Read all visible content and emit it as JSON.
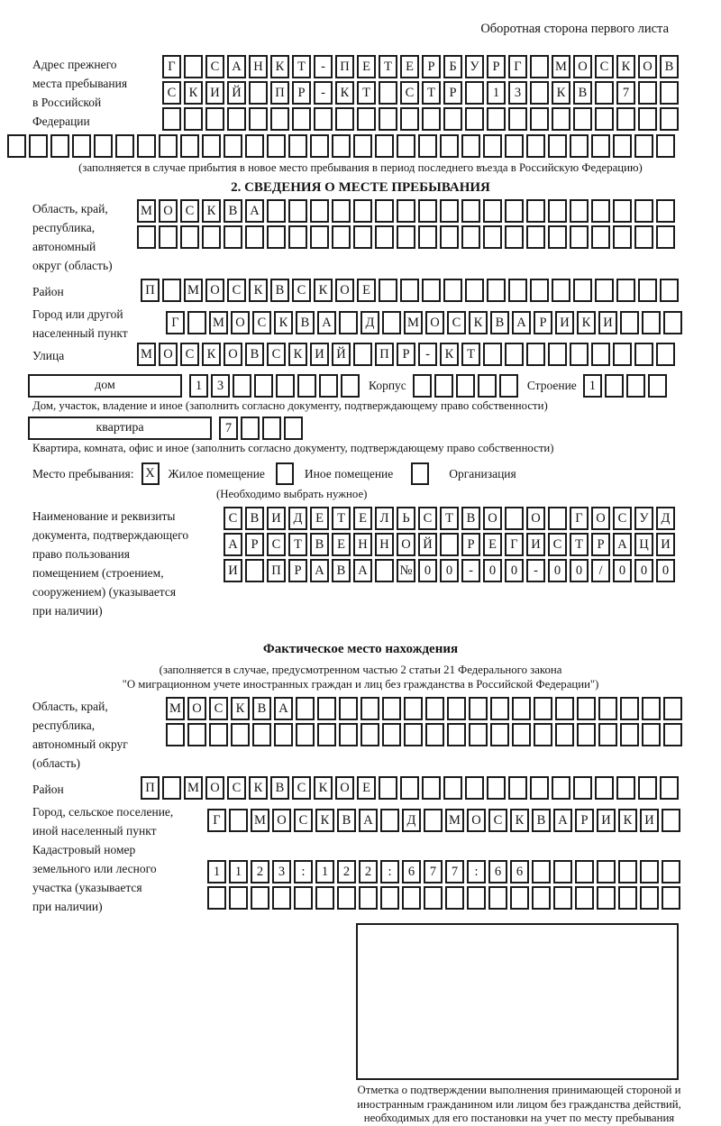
{
  "page": {
    "top_note": "Оборотная сторона первого листа"
  },
  "prev_address": {
    "label": "Адрес прежнего\nместа пребывания\nв Российской\nФедерации",
    "rows": [
      {
        "count": 24,
        "text": "Г САНКТ-ПЕТЕРБУРГ МОСКОВ"
      },
      {
        "count": 24,
        "text": "СКИЙ ПР-КТ СТР 13 КВ 7"
      },
      {
        "count": 24,
        "text": ""
      },
      {
        "count": 31,
        "text": ""
      }
    ],
    "note": "(заполняется в случае прибытия в новое место пребывания в период последнего въезда в Российскую Федерацию)"
  },
  "section2": {
    "title": "2. СВЕДЕНИЯ О МЕСТЕ ПРЕБЫВАНИЯ",
    "region": {
      "label": "Область, край,\nреспублика,\nавтономный\nокруг (область)",
      "rows": [
        {
          "count": 25,
          "text": "МОСКВА"
        },
        {
          "count": 25,
          "text": ""
        }
      ]
    },
    "district": {
      "label": "Район",
      "row": {
        "count": 25,
        "text": "П МОСКВСКОЕ"
      }
    },
    "city": {
      "label": "Город или другой\nнаселенный пункт",
      "row": {
        "count": 24,
        "text": "Г МОСКВА Д МОСКВАРИКИ"
      }
    },
    "street": {
      "label": "Улица",
      "row": {
        "count": 25,
        "text": "МОСКОВСКИЙ ПР-КТ"
      }
    },
    "house": {
      "box_label": "дом",
      "cells": {
        "count": 8,
        "text": "13"
      },
      "korpus_label": "Корпус",
      "korpus_cells": {
        "count": 5,
        "text": ""
      },
      "stroenie_label": "Строение",
      "stroenie_cells": {
        "count": 4,
        "text": "1"
      },
      "caption": "Дом, участок, владение и иное (заполнить согласно документу, подтверждающему право собственности)"
    },
    "apartment": {
      "box_label": "квартира",
      "cells": {
        "count": 4,
        "text": "7"
      },
      "caption": "Квартира, комната, офис и иное (заполнить согласно документу, подтверждающему право собственности)"
    },
    "stay_type": {
      "label": "Место пребывания:",
      "options": [
        {
          "label": "Жилое помещение",
          "checked": "X"
        },
        {
          "label": "Иное помещение",
          "checked": ""
        },
        {
          "label": "Организация",
          "checked": ""
        }
      ],
      "note": "(Необходимо выбрать нужное)"
    },
    "doc": {
      "label": "Наименование и реквизиты\nдокумента, подтверждающего\nправо пользования\nпомещением (строением,\nсооружением) (указывается\nпри наличии)",
      "rows": [
        {
          "count": 21,
          "text": "СВИДЕТЕЛЬСТВО О ГОСУД"
        },
        {
          "count": 21,
          "text": "АРСТВЕННОЙ РЕГИСТРАЦИ"
        },
        {
          "count": 21,
          "text": "И ПРАВА №00-00-00/000"
        }
      ]
    }
  },
  "actual_location": {
    "title": "Фактическое место нахождения",
    "note_line1": "(заполняется в случае, предусмотренном частью 2 статьи 21 Федерального закона",
    "note_line2": "\"О миграционном учете иностранных граждан и лиц без гражданства в Российской Федерации\")",
    "region": {
      "label": "Область, край,\nреспублика,\nавтономный округ\n(область)",
      "rows": [
        {
          "count": 24,
          "text": "МОСКВА"
        },
        {
          "count": 24,
          "text": ""
        }
      ]
    },
    "district": {
      "label": "Район",
      "row": {
        "count": 25,
        "text": "П МОСКВСКОЕ"
      }
    },
    "city": {
      "label": "Город, сельское поселение,\nиной населенный пункт",
      "row": {
        "count": 22,
        "text": "Г МОСКВА Д МОСКВАРИКИ"
      }
    },
    "cadastral": {
      "label": "Кадастровый номер\nземельного или лесного\nучастка (указывается\nпри наличии)",
      "rows": [
        {
          "count": 22,
          "text": "1123:122:677:66"
        },
        {
          "count": 22,
          "text": ""
        }
      ]
    },
    "stamp_caption": "Отметка о подтверждении выполнения принимающей стороной и иностранным гражданином или лицом без гражданства действий, необходимых для его постановки на учет по месту пребывания"
  }
}
